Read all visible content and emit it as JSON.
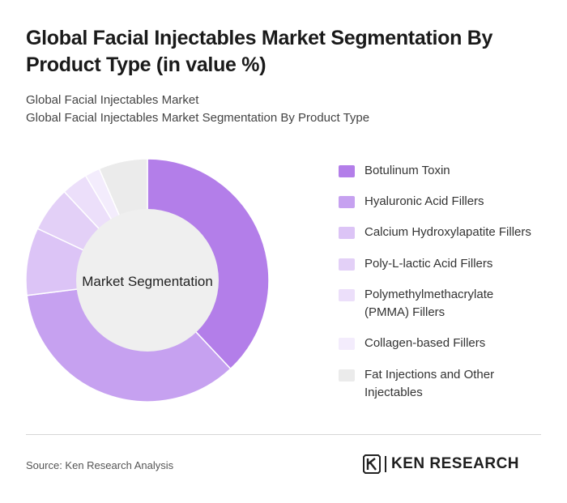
{
  "title": "Global Facial Injectables Market Segmentation By Product Type (in value %)",
  "subtitle_lines": [
    "Global Facial Injectables Market",
    "Global Facial Injectables Market Segmentation By Product Type"
  ],
  "chart_data": {
    "type": "pie",
    "variant": "donut",
    "center_label": "Market Segmentation",
    "legend_position": "right",
    "series": [
      {
        "name": "Botulinum Toxin",
        "value": 38,
        "color": "#b37ee9"
      },
      {
        "name": "Hyaluronic Acid Fillers",
        "value": 35,
        "color": "#c6a1f0"
      },
      {
        "name": "Calcium Hydroxylapatite Fillers",
        "value": 9,
        "color": "#dcc4f6"
      },
      {
        "name": "Poly-L-lactic Acid Fillers",
        "value": 6,
        "color": "#e3d0f7"
      },
      {
        "name": "Polymethylmethacrylate (PMMA) Fillers",
        "value": 3.5,
        "color": "#ecdffa"
      },
      {
        "name": "Collagen-based Fillers",
        "value": 2,
        "color": "#f3ecfc"
      },
      {
        "name": "Fat Injections and Other Injectables",
        "value": 6.5,
        "color": "#ebebeb"
      }
    ]
  },
  "footer": {
    "source": "Source: Ken Research Analysis",
    "logo_text": "KEN RESEARCH"
  }
}
